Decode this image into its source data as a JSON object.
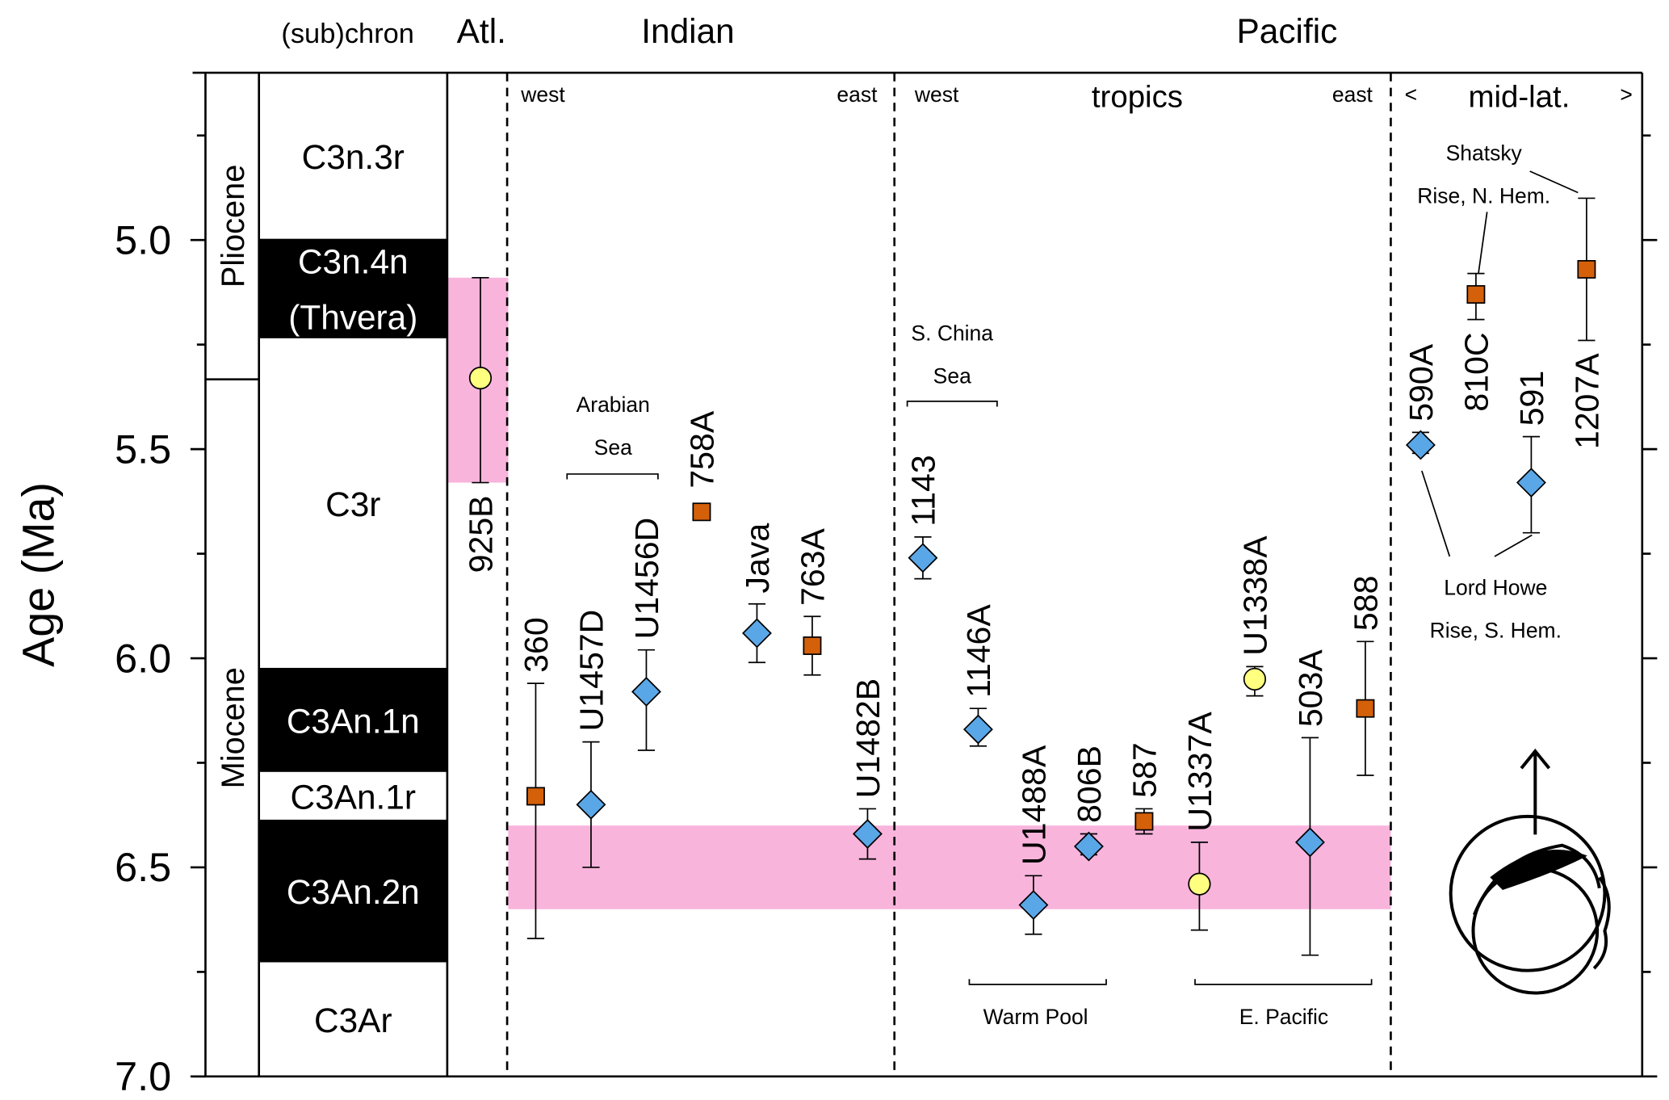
{
  "chart_data": {
    "type": "scatter",
    "y_label": "Age (Ma)",
    "ylim": [
      4.6,
      7.0
    ],
    "yticks": [
      {
        "value": 5.0,
        "label": "5.0"
      },
      {
        "value": 5.5,
        "label": "5.5"
      },
      {
        "value": 6.0,
        "label": "6.0"
      },
      {
        "value": 6.5,
        "label": "6.5"
      },
      {
        "value": 7.0,
        "label": "7.0"
      }
    ],
    "yminor": [
      4.75,
      5.25,
      5.75,
      6.25,
      6.75
    ],
    "headers": [
      "(sub)chron",
      "Atl.",
      "Indian",
      "Pacific"
    ],
    "subheaders": [
      "west",
      "east",
      "west",
      "tropics",
      "east",
      "<",
      "mid-lat.",
      ">"
    ],
    "epochs": [
      {
        "name": "Pliocene",
        "top": 4.6,
        "base": 5.333
      },
      {
        "name": "Miocene",
        "top": 5.333,
        "base": 7.0
      }
    ],
    "chrons": [
      {
        "name": [
          "C3n.3r"
        ],
        "top": 4.6,
        "base": 4.997,
        "normal": false
      },
      {
        "name": [
          "C3n.4n",
          "(Thvera)"
        ],
        "top": 4.997,
        "base": 5.235,
        "normal": true
      },
      {
        "name": [
          "C3r"
        ],
        "top": 5.235,
        "base": 6.023,
        "normal": false
      },
      {
        "name": [
          "C3An.1n"
        ],
        "top": 6.023,
        "base": 6.272,
        "normal": true
      },
      {
        "name": [
          "C3An.1r"
        ],
        "top": 6.272,
        "base": 6.386,
        "normal": false
      },
      {
        "name": [
          "C3An.2n"
        ],
        "top": 6.386,
        "base": 6.727,
        "normal": true
      },
      {
        "name": [
          "C3Ar"
        ],
        "top": 6.727,
        "base": 7.0,
        "normal": false
      }
    ],
    "bands": [
      {
        "lower": 5.09,
        "upper": 5.58,
        "color": "#f9b4dc"
      },
      {
        "lower": 6.4,
        "upper": 6.6,
        "color": "#f9b4dc"
      }
    ],
    "marker_colors": {
      "circle": "#ffff80",
      "square": "#d4600a",
      "diamond": "#5aa7e8"
    },
    "sites": [
      {
        "name": "925B",
        "marker": "circle",
        "value": 5.33,
        "lower": 5.09,
        "upper": 5.58
      },
      {
        "name": "360",
        "marker": "square",
        "value": 6.33,
        "lower": 6.06,
        "upper": 6.67
      },
      {
        "name": "U1457D",
        "marker": "diamond",
        "value": 6.35,
        "lower": 6.2,
        "upper": 6.5
      },
      {
        "name": "U1456D",
        "marker": "diamond",
        "value": 6.08,
        "lower": 5.98,
        "upper": 6.22
      },
      {
        "name": "758A",
        "marker": "square",
        "value": 5.65,
        "lower": null,
        "upper": null
      },
      {
        "name": "Java",
        "marker": "diamond",
        "value": 5.94,
        "lower": 5.87,
        "upper": 6.01
      },
      {
        "name": "763A",
        "marker": "square",
        "value": 5.97,
        "lower": 5.9,
        "upper": 6.04
      },
      {
        "name": "U1482B",
        "marker": "diamond",
        "value": 6.42,
        "lower": 6.36,
        "upper": 6.48
      },
      {
        "name": "1143",
        "marker": "diamond",
        "value": 5.76,
        "lower": 5.71,
        "upper": 5.81
      },
      {
        "name": "1146A",
        "marker": "diamond",
        "value": 6.17,
        "lower": 6.12,
        "upper": 6.21
      },
      {
        "name": "U1488A",
        "marker": "diamond",
        "value": 6.59,
        "lower": 6.52,
        "upper": 6.66
      },
      {
        "name": "806B",
        "marker": "diamond",
        "value": 6.45,
        "lower": 6.42,
        "upper": 6.47
      },
      {
        "name": "587",
        "marker": "square",
        "value": 6.39,
        "lower": 6.36,
        "upper": 6.42
      },
      {
        "name": "U1337A",
        "marker": "circle",
        "value": 6.54,
        "lower": 6.44,
        "upper": 6.65
      },
      {
        "name": "U1338A",
        "marker": "circle",
        "value": 6.05,
        "lower": 6.02,
        "upper": 6.09
      },
      {
        "name": "503A",
        "marker": "diamond",
        "value": 6.44,
        "lower": 6.19,
        "upper": 6.71
      },
      {
        "name": "588",
        "marker": "square",
        "value": 6.12,
        "lower": 5.96,
        "upper": 6.28
      },
      {
        "name": "590A",
        "marker": "diamond",
        "value": 5.49,
        "lower": 5.46,
        "upper": 5.51
      },
      {
        "name": "810C",
        "marker": "square",
        "value": 5.13,
        "lower": 5.08,
        "upper": 5.19
      },
      {
        "name": "591",
        "marker": "diamond",
        "value": 5.58,
        "lower": 5.47,
        "upper": 5.7
      },
      {
        "name": "1207A",
        "marker": "square",
        "value": 5.07,
        "lower": 4.9,
        "upper": 5.24
      }
    ],
    "annotations": {
      "arabian_sea": [
        "Arabian",
        "Sea"
      ],
      "south_china_sea": [
        "S. China",
        "Sea"
      ],
      "warm_pool": "Warm Pool",
      "east_pacific": "E. Pacific",
      "shatsky": [
        "Shatsky",
        "Rise, N. Hem."
      ],
      "lord_howe": [
        "Lord Howe",
        "Rise, S. Hem."
      ]
    }
  }
}
